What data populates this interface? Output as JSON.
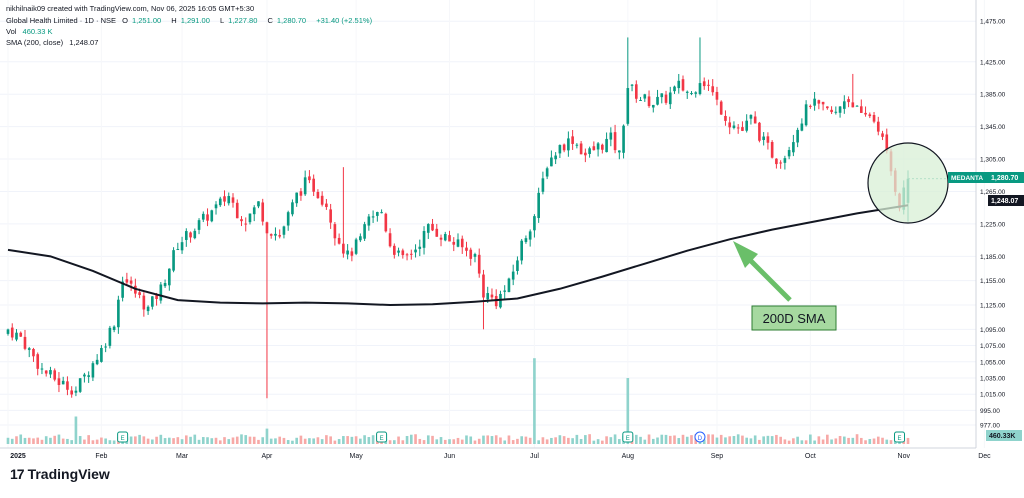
{
  "header": {
    "creator_line": "nikhilnaik09 created with TradingView.com, Nov 06, 2025 16:05 GMT+5:30",
    "symbol_line": "Global Health Limited · 1D · NSE",
    "o_label": "O",
    "o_value": "1,251.00",
    "h_label": "H",
    "h_value": "1,291.00",
    "l_label": "L",
    "l_value": "1,227.80",
    "c_label": "C",
    "c_value": "1,280.70",
    "change": "+31.40 (+2.51%)",
    "vol_label": "Vol",
    "vol_value": "460.33 K",
    "sma_label": "SMA (200, close)",
    "sma_value": "1,248.07"
  },
  "brand": {
    "logo": "17",
    "name": "TradingView"
  },
  "annotations": {
    "sma_callout": "200D SMA"
  },
  "price_tags": {
    "symbol": "MEDANTA",
    "last_price": "1,280.70",
    "sma_price": "1,248.07",
    "volume_tag": "460.33K"
  },
  "colors": {
    "up": "#089981",
    "down": "#f23645",
    "vol_up": "#8fd3cc",
    "vol_down": "#f7a9a7",
    "sma_line": "#131722",
    "callout_fill": "#a6d9a0",
    "callout_border": "#2e7d32",
    "circle_fill": "#d8efd6",
    "arrow": "#66bb6a"
  },
  "chart_data": {
    "type": "candlestick",
    "title": "Global Health Limited · 1D · NSE",
    "ylim": [
      977,
      1495
    ],
    "y_ticks": [
      "1,475.00",
      "1,425.00",
      "1,385.00",
      "1,345.00",
      "1,305.00",
      "1,265.00",
      "1,225.00",
      "1,185.00",
      "1,155.00",
      "1,125.00",
      "1,095.00",
      "1,075.00",
      "1,055.00",
      "1,035.00",
      "1,015.00",
      "995.00",
      "977.00"
    ],
    "x_tick_labels": [
      "2025",
      "Feb",
      "Mar",
      "Apr",
      "May",
      "Jun",
      "Jul",
      "Aug",
      "Sep",
      "Oct",
      "Nov",
      "Dec"
    ],
    "x_tick_days": [
      0,
      22,
      41,
      61,
      82,
      104,
      124,
      146,
      167,
      189,
      211,
      230
    ],
    "last_day": 212,
    "close_anchors": [
      [
        0,
        1095
      ],
      [
        3,
        1085
      ],
      [
        8,
        1045
      ],
      [
        12,
        1030
      ],
      [
        16,
        1020
      ],
      [
        19,
        1045
      ],
      [
        22,
        1070
      ],
      [
        25,
        1105
      ],
      [
        27,
        1160
      ],
      [
        30,
        1140
      ],
      [
        33,
        1120
      ],
      [
        36,
        1145
      ],
      [
        40,
        1200
      ],
      [
        45,
        1225
      ],
      [
        49,
        1245
      ],
      [
        52,
        1260
      ],
      [
        54,
        1240
      ],
      [
        56,
        1230
      ],
      [
        59,
        1250
      ],
      [
        61,
        1220
      ],
      [
        64,
        1210
      ],
      [
        68,
        1260
      ],
      [
        70,
        1275
      ],
      [
        72,
        1270
      ],
      [
        75,
        1250
      ],
      [
        77,
        1215
      ],
      [
        80,
        1185
      ],
      [
        83,
        1205
      ],
      [
        85,
        1230
      ],
      [
        88,
        1240
      ],
      [
        90,
        1200
      ],
      [
        93,
        1180
      ],
      [
        96,
        1195
      ],
      [
        99,
        1220
      ],
      [
        101,
        1215
      ],
      [
        104,
        1205
      ],
      [
        107,
        1195
      ],
      [
        110,
        1185
      ],
      [
        112,
        1140
      ],
      [
        115,
        1130
      ],
      [
        118,
        1150
      ],
      [
        121,
        1200
      ],
      [
        124,
        1235
      ],
      [
        127,
        1300
      ],
      [
        130,
        1320
      ],
      [
        133,
        1330
      ],
      [
        136,
        1310
      ],
      [
        139,
        1320
      ],
      [
        142,
        1330
      ],
      [
        144,
        1310
      ],
      [
        146,
        1395
      ],
      [
        149,
        1380
      ],
      [
        152,
        1375
      ],
      [
        155,
        1380
      ],
      [
        158,
        1395
      ],
      [
        161,
        1385
      ],
      [
        163,
        1405
      ],
      [
        165,
        1395
      ],
      [
        167,
        1375
      ],
      [
        170,
        1350
      ],
      [
        173,
        1340
      ],
      [
        175,
        1355
      ],
      [
        178,
        1325
      ],
      [
        181,
        1305
      ],
      [
        183,
        1310
      ],
      [
        186,
        1345
      ],
      [
        189,
        1375
      ],
      [
        192,
        1365
      ],
      [
        195,
        1360
      ],
      [
        197,
        1380
      ],
      [
        199,
        1375
      ],
      [
        201,
        1355
      ],
      [
        203,
        1360
      ],
      [
        205,
        1345
      ],
      [
        207,
        1310
      ],
      [
        209,
        1270
      ],
      [
        210,
        1250
      ],
      [
        212,
        1280.7
      ]
    ],
    "spikes": [
      [
        61,
        1010,
        "low"
      ],
      [
        79,
        1295,
        "high"
      ],
      [
        112,
        1095,
        "low"
      ],
      [
        146,
        1455,
        "high"
      ],
      [
        163,
        1455,
        "high"
      ],
      [
        199,
        1410,
        "high"
      ]
    ],
    "last_candle": {
      "open": 1251.0,
      "high": 1291.0,
      "low": 1227.8,
      "close": 1280.7
    },
    "sma": {
      "name": "SMA (200, close)",
      "points": [
        [
          0,
          1193
        ],
        [
          10,
          1185
        ],
        [
          20,
          1167
        ],
        [
          30,
          1145
        ],
        [
          40,
          1131
        ],
        [
          50,
          1128
        ],
        [
          60,
          1127
        ],
        [
          70,
          1128
        ],
        [
          80,
          1127
        ],
        [
          90,
          1125
        ],
        [
          100,
          1126
        ],
        [
          110,
          1129
        ],
        [
          120,
          1133
        ],
        [
          130,
          1145
        ],
        [
          140,
          1160
        ],
        [
          150,
          1176
        ],
        [
          160,
          1192
        ],
        [
          170,
          1206
        ],
        [
          180,
          1218
        ],
        [
          190,
          1228
        ],
        [
          200,
          1238
        ],
        [
          212,
          1248.07
        ]
      ]
    },
    "volume": {
      "large_spikes": [
        [
          16,
          "up",
          0.25
        ],
        [
          27,
          "up",
          0.1
        ],
        [
          61,
          "up",
          0.14
        ],
        [
          124,
          "up",
          0.78
        ],
        [
          146,
          "up",
          0.6
        ],
        [
          163,
          "up",
          0.09
        ]
      ],
      "markers": [
        [
          27,
          "E"
        ],
        [
          88,
          "E"
        ],
        [
          146,
          "E"
        ],
        [
          163,
          "D"
        ],
        [
          210,
          "E"
        ]
      ]
    }
  }
}
